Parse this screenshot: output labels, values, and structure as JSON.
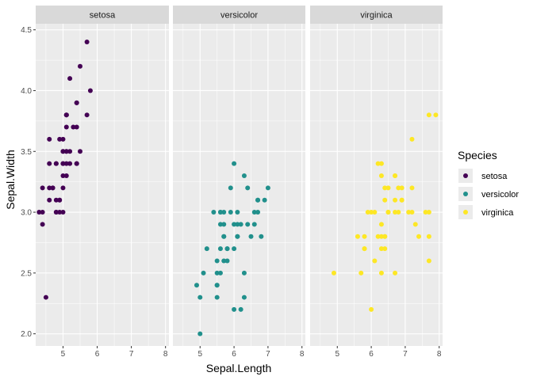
{
  "chart_data": {
    "type": "scatter",
    "facet_by": "Species",
    "xlabel": "Sepal.Length",
    "ylabel": "Sepal.Width",
    "xlim": [
      4.2,
      8.1
    ],
    "ylim": [
      1.9,
      4.55
    ],
    "x_ticks": [
      5,
      6,
      7,
      8
    ],
    "y_ticks": [
      2.0,
      2.5,
      3.0,
      3.5,
      4.0,
      4.5
    ],
    "y_tick_labels": [
      "2.0",
      "2.5",
      "3.0",
      "3.5",
      "4.0",
      "4.5"
    ],
    "grid": true,
    "legend": {
      "title": "Species",
      "position": "right",
      "entries": [
        "setosa",
        "versicolor",
        "virginica"
      ]
    },
    "colors": {
      "setosa": "#440154",
      "versicolor": "#21908C",
      "virginica": "#FDE725",
      "panel_background": "#EBEBEB",
      "strip_background": "#D9D9D9",
      "grid": "#FFFFFF"
    },
    "series": [
      {
        "name": "setosa",
        "points": [
          [
            5.1,
            3.5
          ],
          [
            4.9,
            3.0
          ],
          [
            4.7,
            3.2
          ],
          [
            4.6,
            3.1
          ],
          [
            5.0,
            3.6
          ],
          [
            5.4,
            3.9
          ],
          [
            4.6,
            3.4
          ],
          [
            5.0,
            3.4
          ],
          [
            4.4,
            2.9
          ],
          [
            4.9,
            3.1
          ],
          [
            5.4,
            3.7
          ],
          [
            4.8,
            3.4
          ],
          [
            4.8,
            3.0
          ],
          [
            4.3,
            3.0
          ],
          [
            5.8,
            4.0
          ],
          [
            5.7,
            4.4
          ],
          [
            5.4,
            3.9
          ],
          [
            5.1,
            3.5
          ],
          [
            5.7,
            3.8
          ],
          [
            5.1,
            3.8
          ],
          [
            5.4,
            3.4
          ],
          [
            5.1,
            3.7
          ],
          [
            4.6,
            3.6
          ],
          [
            5.1,
            3.3
          ],
          [
            4.8,
            3.4
          ],
          [
            5.0,
            3.0
          ],
          [
            5.0,
            3.4
          ],
          [
            5.2,
            3.5
          ],
          [
            5.2,
            3.4
          ],
          [
            4.7,
            3.2
          ],
          [
            4.8,
            3.1
          ],
          [
            5.4,
            3.4
          ],
          [
            5.2,
            4.1
          ],
          [
            5.5,
            4.2
          ],
          [
            4.9,
            3.1
          ],
          [
            5.0,
            3.2
          ],
          [
            5.5,
            3.5
          ],
          [
            4.9,
            3.6
          ],
          [
            4.4,
            3.0
          ],
          [
            5.1,
            3.4
          ],
          [
            5.0,
            3.5
          ],
          [
            4.5,
            2.3
          ],
          [
            4.4,
            3.2
          ],
          [
            5.0,
            3.5
          ],
          [
            5.1,
            3.8
          ],
          [
            4.8,
            3.0
          ],
          [
            5.1,
            3.8
          ],
          [
            4.6,
            3.2
          ],
          [
            5.3,
            3.7
          ],
          [
            5.0,
            3.3
          ]
        ]
      },
      {
        "name": "versicolor",
        "points": [
          [
            7.0,
            3.2
          ],
          [
            6.4,
            3.2
          ],
          [
            6.9,
            3.1
          ],
          [
            5.5,
            2.3
          ],
          [
            6.5,
            2.8
          ],
          [
            5.7,
            2.8
          ],
          [
            6.3,
            3.3
          ],
          [
            4.9,
            2.4
          ],
          [
            6.6,
            2.9
          ],
          [
            5.2,
            2.7
          ],
          [
            5.0,
            2.0
          ],
          [
            5.9,
            3.0
          ],
          [
            6.0,
            2.2
          ],
          [
            6.1,
            2.9
          ],
          [
            5.6,
            2.9
          ],
          [
            6.7,
            3.1
          ],
          [
            5.6,
            3.0
          ],
          [
            5.8,
            2.7
          ],
          [
            6.2,
            2.2
          ],
          [
            5.6,
            2.5
          ],
          [
            5.9,
            3.2
          ],
          [
            6.1,
            2.8
          ],
          [
            6.3,
            2.5
          ],
          [
            6.1,
            2.8
          ],
          [
            6.4,
            2.9
          ],
          [
            6.6,
            3.0
          ],
          [
            6.8,
            2.8
          ],
          [
            6.7,
            3.0
          ],
          [
            6.0,
            2.9
          ],
          [
            5.7,
            2.6
          ],
          [
            5.5,
            2.4
          ],
          [
            5.5,
            2.4
          ],
          [
            5.8,
            2.7
          ],
          [
            6.0,
            2.7
          ],
          [
            5.4,
            3.0
          ],
          [
            6.0,
            3.4
          ],
          [
            6.7,
            3.1
          ],
          [
            6.3,
            2.3
          ],
          [
            5.6,
            3.0
          ],
          [
            5.5,
            2.5
          ],
          [
            5.5,
            2.6
          ],
          [
            6.1,
            3.0
          ],
          [
            5.8,
            2.6
          ],
          [
            5.0,
            2.3
          ],
          [
            5.6,
            2.7
          ],
          [
            5.7,
            3.0
          ],
          [
            5.7,
            2.9
          ],
          [
            6.2,
            2.9
          ],
          [
            5.1,
            2.5
          ],
          [
            5.7,
            2.8
          ]
        ]
      },
      {
        "name": "virginica",
        "points": [
          [
            6.3,
            3.3
          ],
          [
            5.8,
            2.7
          ],
          [
            7.1,
            3.0
          ],
          [
            6.3,
            2.9
          ],
          [
            6.5,
            3.0
          ],
          [
            7.6,
            3.0
          ],
          [
            4.9,
            2.5
          ],
          [
            7.3,
            2.9
          ],
          [
            6.7,
            2.5
          ],
          [
            7.2,
            3.6
          ],
          [
            6.5,
            3.2
          ],
          [
            6.4,
            2.7
          ],
          [
            6.8,
            3.0
          ],
          [
            5.7,
            2.5
          ],
          [
            5.8,
            2.8
          ],
          [
            6.4,
            3.2
          ],
          [
            6.5,
            3.0
          ],
          [
            7.7,
            3.8
          ],
          [
            7.7,
            2.6
          ],
          [
            6.0,
            2.2
          ],
          [
            6.9,
            3.2
          ],
          [
            5.6,
            2.8
          ],
          [
            7.7,
            2.8
          ],
          [
            6.3,
            2.7
          ],
          [
            6.7,
            3.3
          ],
          [
            7.2,
            3.2
          ],
          [
            6.2,
            2.8
          ],
          [
            6.1,
            3.0
          ],
          [
            6.4,
            2.8
          ],
          [
            7.2,
            3.0
          ],
          [
            7.4,
            2.8
          ],
          [
            7.9,
            3.8
          ],
          [
            6.4,
            2.8
          ],
          [
            6.3,
            2.8
          ],
          [
            6.1,
            2.6
          ],
          [
            7.7,
            3.0
          ],
          [
            6.3,
            3.4
          ],
          [
            6.4,
            3.1
          ],
          [
            6.0,
            3.0
          ],
          [
            6.9,
            3.1
          ],
          [
            6.7,
            3.1
          ],
          [
            6.9,
            3.1
          ],
          [
            5.8,
            2.7
          ],
          [
            6.8,
            3.2
          ],
          [
            6.7,
            3.3
          ],
          [
            6.7,
            3.0
          ],
          [
            6.3,
            2.5
          ],
          [
            6.5,
            3.0
          ],
          [
            6.2,
            3.4
          ],
          [
            5.9,
            3.0
          ]
        ]
      }
    ]
  }
}
